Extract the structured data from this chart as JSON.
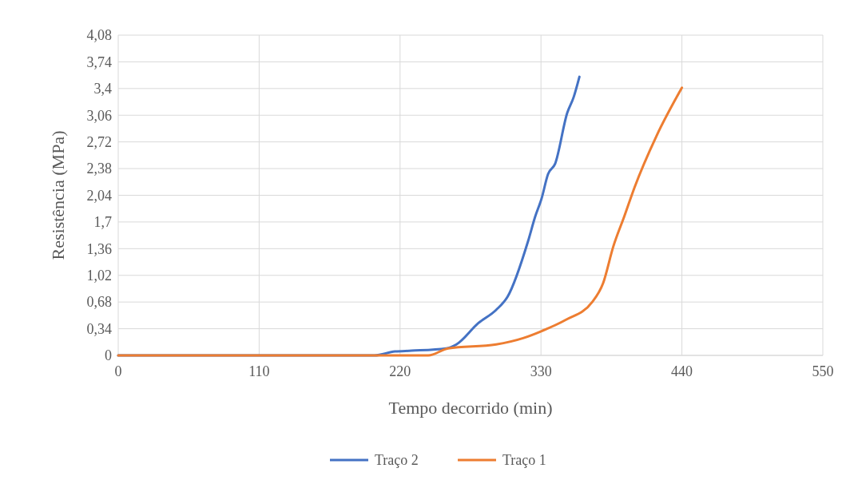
{
  "chart_data": {
    "type": "line",
    "xlabel": "Tempo decorrido (min)",
    "ylabel": "Resistência (MPa)",
    "xlim": [
      0,
      550
    ],
    "xticks": [
      0,
      110,
      220,
      330,
      440,
      550
    ],
    "ylim": [
      0,
      4.08
    ],
    "yticks": [
      0,
      {
        "value": 0.34,
        "label": "0,34"
      },
      {
        "value": 0.68,
        "label": "0,68"
      },
      {
        "value": 1.02,
        "label": "1,02"
      },
      {
        "value": 1.36,
        "label": "1,36"
      },
      {
        "value": 1.7,
        "label": "1,7"
      },
      {
        "value": 2.04,
        "label": "2,04"
      },
      {
        "value": 2.38,
        "label": "2,38"
      },
      {
        "value": 2.72,
        "label": "2,72"
      },
      {
        "value": 3.06,
        "label": "3,06"
      },
      {
        "value": 3.4,
        "label": "3,4"
      },
      {
        "value": 3.74,
        "label": "3,74"
      },
      {
        "value": 4.08,
        "label": "4,08"
      }
    ],
    "grid": true,
    "legend": "bottom",
    "line_style": "solid",
    "series": [
      {
        "name": "Traço 2",
        "color": "#4472c4",
        "x": [
          0,
          100,
          200,
          216,
          229,
          256,
          264,
          281,
          295,
          304,
          320,
          325.5,
          330.5,
          335.5,
          341,
          350.5,
          355.5,
          360
        ],
        "values": [
          0,
          0,
          0,
          0.05,
          0.06,
          0.09,
          0.14,
          0.41,
          0.58,
          0.75,
          1.46,
          1.77,
          2.0,
          2.31,
          2.44,
          3.09,
          3.29,
          3.55
        ]
      },
      {
        "name": "Traço 1",
        "color": "#ed7d31",
        "x": [
          0,
          100,
          200,
          242,
          257.5,
          295,
          316,
          330.5,
          349,
          370,
          378.5,
          386.5,
          395,
          403,
          420,
          440
        ],
        "values": [
          0,
          0,
          0,
          0,
          0.09,
          0.14,
          0.22,
          0.31,
          0.45,
          0.68,
          0.92,
          1.39,
          1.77,
          2.14,
          2.79,
          3.41
        ]
      }
    ]
  }
}
